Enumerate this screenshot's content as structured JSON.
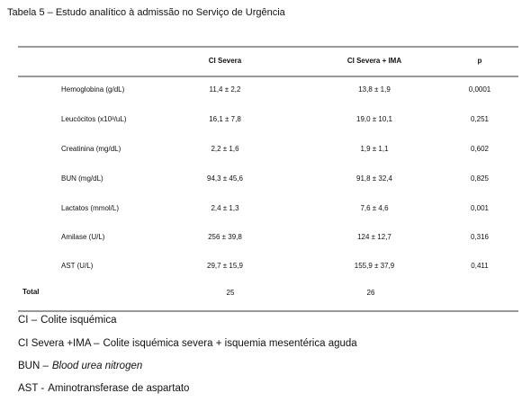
{
  "title": "Tabela 5 – Estudo analítico à admissão no Serviço de Urgência",
  "table": {
    "header": [
      "CI Severa",
      "CI Severa + IMA",
      "p"
    ],
    "rows": [
      [
        "Hemoglobina (g/dL)",
        "11,4 ± 2,2",
        "13,8 ± 1,9",
        "0,0001"
      ],
      [
        "Leucócitos (x10³/uL)",
        "16,1 ± 7,8",
        "19,0 ± 10,1",
        "0,251"
      ],
      [
        "Creatinina (mg/dL)",
        "2,2 ± 1,6",
        "1,9 ± 1,1",
        "0,602"
      ],
      [
        "BUN (mg/dL)",
        "94,3 ± 45,6",
        "91,8 ± 32,4",
        "0,825"
      ],
      [
        "Lactatos (mmol/L)",
        "2,4 ± 1,3",
        "7,6 ± 4,6",
        "0,001"
      ],
      [
        "Amilase (U/L)",
        "256 ± 39,8",
        "124 ± 12,7",
        "0,316"
      ],
      [
        "AST (U/L)",
        "29,7 ± 15,9",
        "155,9 ± 37,9",
        "0,411"
      ]
    ],
    "total": [
      "Total",
      "25",
      "26"
    ]
  },
  "footnotes": [
    {
      "term": "CI –",
      "definition": "Colite isquémica",
      "italic": false
    },
    {
      "term": "CI Severa +IMA –",
      "definition": "Colite isquémica severa + isquemia mesentérica aguda",
      "italic": false
    },
    {
      "term": "BUN –",
      "definition": "Blood urea nitrogen",
      "italic": true
    },
    {
      "term": "AST -",
      "definition": "Aminotransferase de aspartato",
      "italic": false
    }
  ]
}
